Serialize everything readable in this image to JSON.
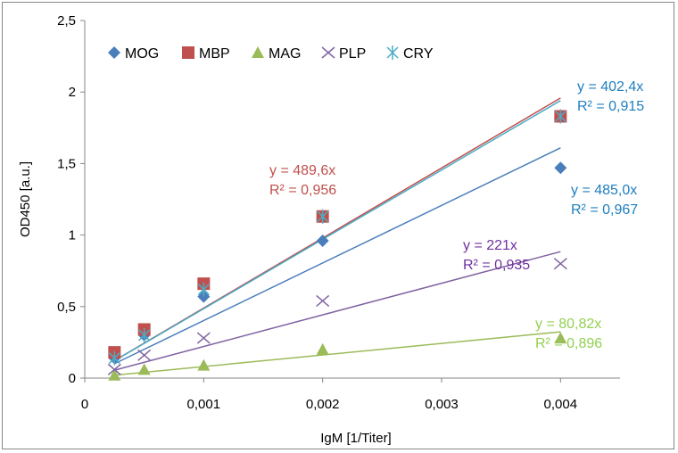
{
  "chart_data": {
    "type": "scatter",
    "title": "",
    "xlabel": "IgM [1/Titer]",
    "ylabel": "OD450 [a.u.]",
    "xlim": [
      0,
      0.0045
    ],
    "ylim": [
      0,
      2.5
    ],
    "x_ticks": [
      0,
      0.001,
      0.002,
      0.003,
      0.004
    ],
    "x_tick_labels": [
      "0",
      "0,001",
      "0,002",
      "0,003",
      "0,004"
    ],
    "y_ticks": [
      0,
      0.5,
      1,
      1.5,
      2,
      2.5
    ],
    "y_tick_labels": [
      "0",
      "0,5",
      "1",
      "1,5",
      "2",
      "2,5"
    ],
    "grid": false,
    "legend_position": "top-left",
    "x": [
      0.00025,
      0.0005,
      0.001,
      0.002,
      0.004
    ],
    "series": [
      {
        "name": "MOG",
        "marker": "diamond",
        "color": "#4a7ebb",
        "values": [
          0.14,
          0.3,
          0.57,
          0.96,
          1.47
        ],
        "slope": 402.4
      },
      {
        "name": "MBP",
        "marker": "square",
        "color": "#c0504d",
        "values": [
          0.18,
          0.34,
          0.66,
          1.13,
          1.83
        ],
        "slope": 489.6
      },
      {
        "name": "MAG",
        "marker": "triangle",
        "color": "#9bbb59",
        "values": [
          0.02,
          0.06,
          0.09,
          0.2,
          0.28
        ],
        "slope": 80.82
      },
      {
        "name": "PLP",
        "marker": "x",
        "color": "#8064a2",
        "values": [
          0.06,
          0.16,
          0.28,
          0.54,
          0.8
        ],
        "slope": 221
      },
      {
        "name": "CRY",
        "marker": "star",
        "color": "#4bacc6",
        "values": [
          0.14,
          0.3,
          0.62,
          1.13,
          1.83
        ],
        "slope": 485.0
      }
    ],
    "annotations": [
      {
        "equation": "y = 489,6x",
        "r2": "R² = 0,956",
        "color": "#c0504d"
      },
      {
        "equation": "y = 402,4x",
        "r2": "R² = 0,915",
        "color": "#1f7fbf"
      },
      {
        "equation": "y = 485,0x",
        "r2": "R² = 0,967",
        "color": "#1f7fbf"
      },
      {
        "equation": "y = 221x",
        "r2": "R² = 0,935",
        "color": "#7030a0"
      },
      {
        "equation": "y = 80,82x",
        "r2": "R² = 0,896",
        "color": "#92d050"
      }
    ]
  }
}
